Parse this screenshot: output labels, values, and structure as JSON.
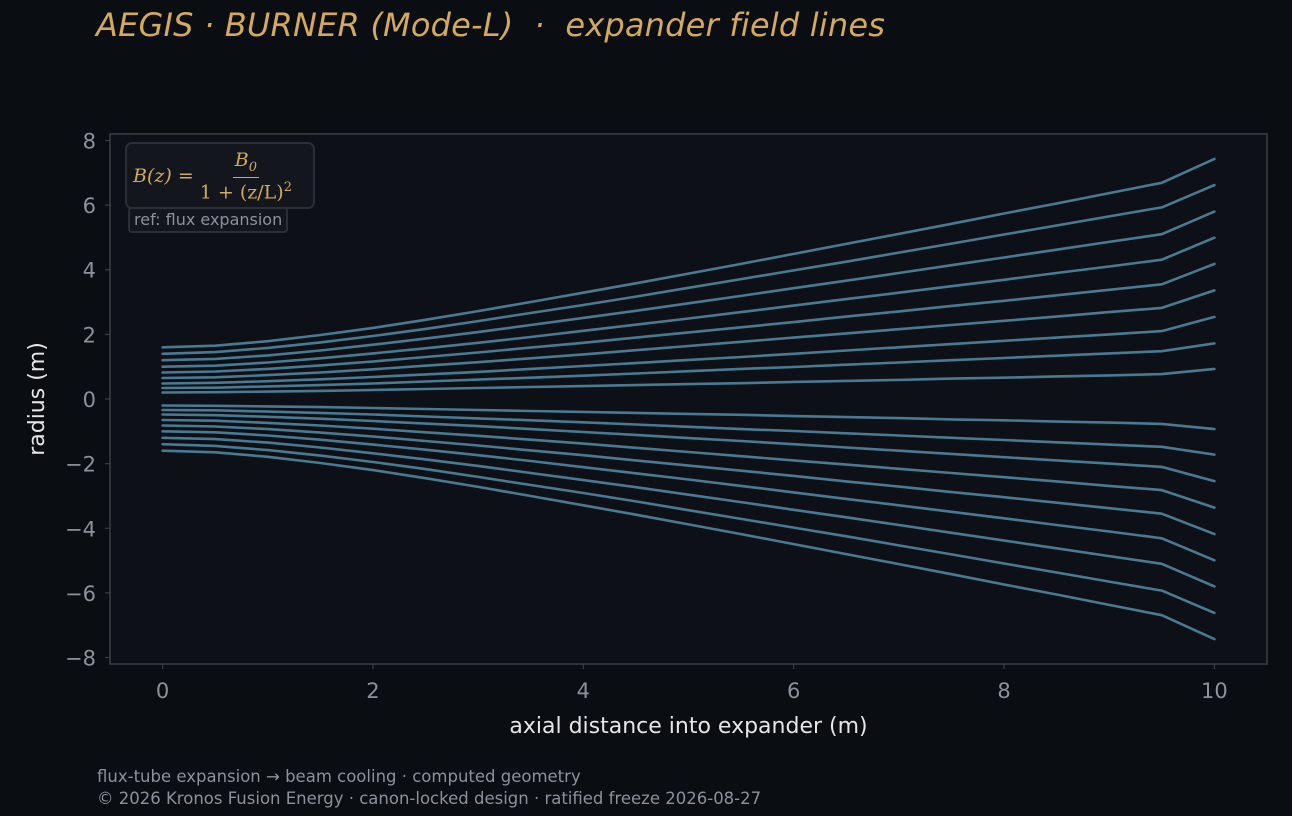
{
  "page": {
    "title": "AEGIS · BURNER (Mode-L)  ·  expander field lines",
    "footer_line1": "flux-tube expansion → beam cooling · computed geometry",
    "footer_line2": "© 2026 Kronos Fusion Energy · canon-locked design · ratified freeze 2026-08-27"
  },
  "annotations": {
    "formula_lhs": "B(z) =",
    "formula_num": "B",
    "formula_num_sub": "0",
    "formula_den": "1 + (z/L)",
    "formula_den_sup": "2",
    "ref_label": "ref: flux expansion"
  },
  "colors": {
    "background": "#0a0d11",
    "plot_background": "#0d1016",
    "line": "#4a7a92",
    "title": "#d4a95e",
    "tick": "#8b929c",
    "axis_label": "#e6e6e6",
    "spine": "#3a3f47"
  },
  "chart_data": {
    "type": "line",
    "title": "",
    "xlabel": "axial distance into expander (m)",
    "ylabel": "radius (m)",
    "xlim": [
      -0.5,
      10.5
    ],
    "ylim": [
      -8.2,
      8.2
    ],
    "xticks": [
      0,
      2,
      4,
      6,
      8,
      10
    ],
    "xtick_labels": [
      "0",
      "2",
      "4",
      "6",
      "8",
      "10"
    ],
    "yticks": [
      -8,
      -6,
      -4,
      -2,
      0,
      2,
      4,
      6,
      8
    ],
    "ytick_labels": [
      "−8",
      "−6",
      "−4",
      "−2",
      "0",
      "2",
      "4",
      "6",
      "8"
    ],
    "grid": false,
    "legend": "none",
    "x": [
      0,
      0.5,
      1,
      1.5,
      2,
      2.5,
      3,
      3.5,
      4,
      4.5,
      5,
      5.5,
      6,
      6.5,
      7,
      7.5,
      8,
      8.5,
      9,
      9.5,
      10
    ],
    "series": [
      {
        "values": [
          1.6,
          1.65,
          1.79,
          1.98,
          2.2,
          2.45,
          2.72,
          3.0,
          3.29,
          3.58,
          3.88,
          4.18,
          4.49,
          4.8,
          5.11,
          5.42,
          5.74,
          6.05,
          6.37,
          6.69,
          7.43
        ]
      },
      {
        "values": [
          1.4,
          1.45,
          1.58,
          1.75,
          1.95,
          2.17,
          2.41,
          2.66,
          2.91,
          3.17,
          3.44,
          3.71,
          3.98,
          4.25,
          4.53,
          4.81,
          5.09,
          5.37,
          5.65,
          5.93,
          6.62
        ]
      },
      {
        "values": [
          1.2,
          1.24,
          1.35,
          1.5,
          1.68,
          1.87,
          2.07,
          2.29,
          2.51,
          2.73,
          2.96,
          3.19,
          3.43,
          3.66,
          3.9,
          4.14,
          4.38,
          4.62,
          4.86,
          5.1,
          5.8
        ]
      },
      {
        "values": [
          1.0,
          1.03,
          1.13,
          1.26,
          1.41,
          1.57,
          1.74,
          1.92,
          2.11,
          2.3,
          2.49,
          2.69,
          2.89,
          3.09,
          3.29,
          3.49,
          3.69,
          3.9,
          4.1,
          4.31,
          4.99
        ]
      },
      {
        "values": [
          0.82,
          0.85,
          0.93,
          1.04,
          1.16,
          1.3,
          1.44,
          1.59,
          1.74,
          1.9,
          2.06,
          2.22,
          2.38,
          2.55,
          2.71,
          2.88,
          3.04,
          3.21,
          3.38,
          3.55,
          4.18
        ]
      },
      {
        "values": [
          0.65,
          0.67,
          0.74,
          0.82,
          0.92,
          1.03,
          1.14,
          1.26,
          1.38,
          1.51,
          1.64,
          1.77,
          1.9,
          2.03,
          2.16,
          2.29,
          2.42,
          2.55,
          2.69,
          2.82,
          3.36
        ]
      },
      {
        "values": [
          0.48,
          0.5,
          0.55,
          0.61,
          0.68,
          0.76,
          0.84,
          0.93,
          1.02,
          1.11,
          1.21,
          1.3,
          1.4,
          1.5,
          1.6,
          1.7,
          1.8,
          1.9,
          2.0,
          2.1,
          2.54
        ]
      },
      {
        "values": [
          0.34,
          0.35,
          0.39,
          0.43,
          0.48,
          0.54,
          0.6,
          0.66,
          0.72,
          0.79,
          0.86,
          0.93,
          0.99,
          1.06,
          1.13,
          1.2,
          1.27,
          1.34,
          1.41,
          1.48,
          1.72
        ]
      },
      {
        "values": [
          0.2,
          0.21,
          0.23,
          0.25,
          0.28,
          0.31,
          0.34,
          0.37,
          0.4,
          0.43,
          0.46,
          0.49,
          0.53,
          0.56,
          0.59,
          0.63,
          0.66,
          0.7,
          0.73,
          0.77,
          0.93
        ]
      },
      {
        "values": [
          -0.2,
          -0.21,
          -0.23,
          -0.25,
          -0.28,
          -0.31,
          -0.34,
          -0.37,
          -0.4,
          -0.43,
          -0.46,
          -0.49,
          -0.53,
          -0.56,
          -0.59,
          -0.63,
          -0.66,
          -0.7,
          -0.73,
          -0.77,
          -0.93
        ]
      },
      {
        "values": [
          -0.34,
          -0.35,
          -0.39,
          -0.43,
          -0.48,
          -0.54,
          -0.6,
          -0.66,
          -0.72,
          -0.79,
          -0.86,
          -0.93,
          -0.99,
          -1.06,
          -1.13,
          -1.2,
          -1.27,
          -1.34,
          -1.41,
          -1.48,
          -1.72
        ]
      },
      {
        "values": [
          -0.48,
          -0.5,
          -0.55,
          -0.61,
          -0.68,
          -0.76,
          -0.84,
          -0.93,
          -1.02,
          -1.11,
          -1.21,
          -1.3,
          -1.4,
          -1.5,
          -1.6,
          -1.7,
          -1.8,
          -1.9,
          -2.0,
          -2.1,
          -2.54
        ]
      },
      {
        "values": [
          -0.65,
          -0.67,
          -0.74,
          -0.82,
          -0.92,
          -1.03,
          -1.14,
          -1.26,
          -1.38,
          -1.51,
          -1.64,
          -1.77,
          -1.9,
          -2.03,
          -2.16,
          -2.29,
          -2.42,
          -2.55,
          -2.69,
          -2.82,
          -3.36
        ]
      },
      {
        "values": [
          -0.82,
          -0.85,
          -0.93,
          -1.04,
          -1.16,
          -1.3,
          -1.44,
          -1.59,
          -1.74,
          -1.9,
          -2.06,
          -2.22,
          -2.38,
          -2.55,
          -2.71,
          -2.88,
          -3.04,
          -3.21,
          -3.38,
          -3.55,
          -4.18
        ]
      },
      {
        "values": [
          -1.0,
          -1.03,
          -1.13,
          -1.26,
          -1.41,
          -1.57,
          -1.74,
          -1.92,
          -2.11,
          -2.3,
          -2.49,
          -2.69,
          -2.89,
          -3.09,
          -3.29,
          -3.49,
          -3.69,
          -3.9,
          -4.1,
          -4.31,
          -4.99
        ]
      },
      {
        "values": [
          -1.2,
          -1.24,
          -1.35,
          -1.5,
          -1.68,
          -1.87,
          -2.07,
          -2.29,
          -2.51,
          -2.73,
          -2.96,
          -3.19,
          -3.43,
          -3.66,
          -3.9,
          -4.14,
          -4.38,
          -4.62,
          -4.86,
          -5.1,
          -5.8
        ]
      },
      {
        "values": [
          -1.4,
          -1.45,
          -1.58,
          -1.75,
          -1.95,
          -2.17,
          -2.41,
          -2.66,
          -2.91,
          -3.17,
          -3.44,
          -3.71,
          -3.98,
          -4.25,
          -4.53,
          -4.81,
          -5.09,
          -5.37,
          -5.65,
          -5.93,
          -6.62
        ]
      },
      {
        "values": [
          -1.6,
          -1.65,
          -1.79,
          -1.98,
          -2.2,
          -2.45,
          -2.72,
          -3.0,
          -3.29,
          -3.58,
          -3.88,
          -4.18,
          -4.49,
          -4.8,
          -5.11,
          -5.42,
          -5.74,
          -6.05,
          -6.37,
          -6.69,
          -7.43
        ]
      }
    ]
  }
}
